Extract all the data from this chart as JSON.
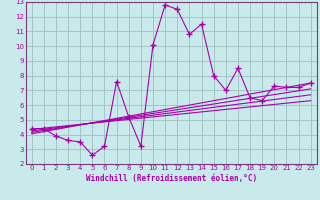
{
  "xlabel": "Windchill (Refroidissement éolien,°C)",
  "bg_color": "#c8eaea",
  "grid_color": "#9dbfbf",
  "line_color": "#aa00aa",
  "xlim": [
    -0.5,
    23.5
  ],
  "ylim": [
    2,
    13
  ],
  "xticks": [
    0,
    1,
    2,
    3,
    4,
    5,
    6,
    7,
    8,
    9,
    10,
    11,
    12,
    13,
    14,
    15,
    16,
    17,
    18,
    19,
    20,
    21,
    22,
    23
  ],
  "yticks": [
    2,
    3,
    4,
    5,
    6,
    7,
    8,
    9,
    10,
    11,
    12,
    13
  ],
  "main_line_x": [
    0,
    1,
    2,
    3,
    4,
    5,
    6,
    7,
    8,
    9,
    10,
    11,
    12,
    13,
    14,
    15,
    16,
    17,
    18,
    19,
    20,
    21,
    22,
    23
  ],
  "main_line_y": [
    4.4,
    4.4,
    3.9,
    3.6,
    3.5,
    2.6,
    3.2,
    7.6,
    5.2,
    3.2,
    10.1,
    12.8,
    12.5,
    10.8,
    11.5,
    8.0,
    7.0,
    8.5,
    6.5,
    6.3,
    7.3,
    7.2,
    7.2,
    7.5
  ],
  "reg_lines": [
    {
      "x": [
        0,
        23
      ],
      "y": [
        4.35,
        6.3
      ]
    },
    {
      "x": [
        0,
        23
      ],
      "y": [
        4.25,
        6.7
      ]
    },
    {
      "x": [
        0,
        23
      ],
      "y": [
        4.15,
        7.1
      ]
    },
    {
      "x": [
        0,
        23
      ],
      "y": [
        4.05,
        7.5
      ]
    }
  ],
  "spine_color": "#7a3a7a"
}
